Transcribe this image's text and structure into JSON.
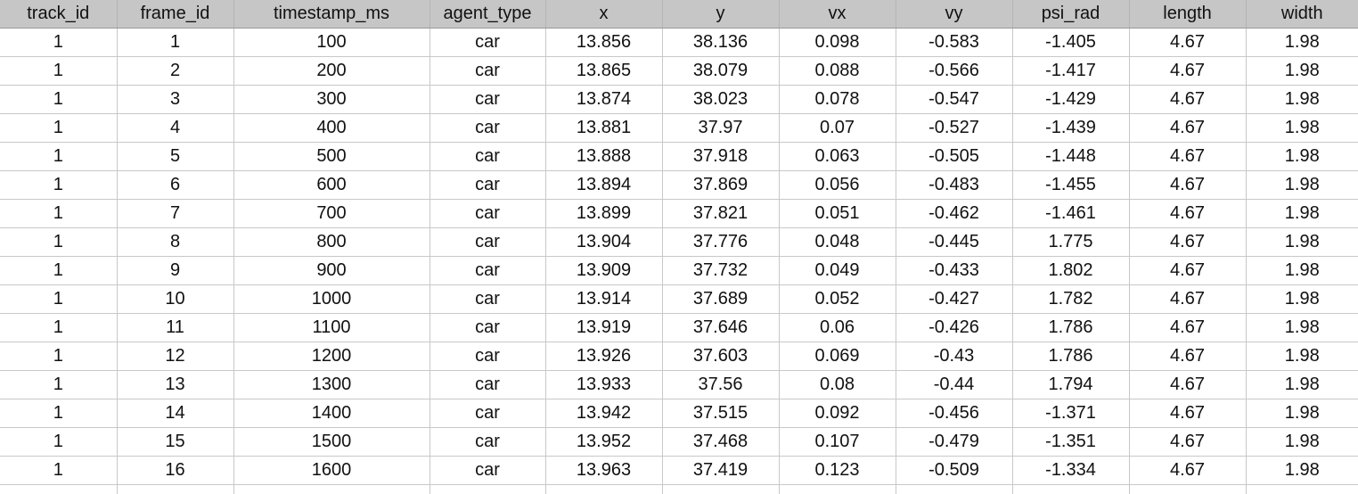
{
  "sheet": {
    "columns": [
      "track_id",
      "frame_id",
      "timestamp_ms",
      "agent_type",
      "x",
      "y",
      "vx",
      "vy",
      "psi_rad",
      "length",
      "width"
    ],
    "rows": [
      [
        "1",
        "1",
        "100",
        "car",
        "13.856",
        "38.136",
        "0.098",
        "-0.583",
        "-1.405",
        "4.67",
        "1.98"
      ],
      [
        "1",
        "2",
        "200",
        "car",
        "13.865",
        "38.079",
        "0.088",
        "-0.566",
        "-1.417",
        "4.67",
        "1.98"
      ],
      [
        "1",
        "3",
        "300",
        "car",
        "13.874",
        "38.023",
        "0.078",
        "-0.547",
        "-1.429",
        "4.67",
        "1.98"
      ],
      [
        "1",
        "4",
        "400",
        "car",
        "13.881",
        "37.97",
        "0.07",
        "-0.527",
        "-1.439",
        "4.67",
        "1.98"
      ],
      [
        "1",
        "5",
        "500",
        "car",
        "13.888",
        "37.918",
        "0.063",
        "-0.505",
        "-1.448",
        "4.67",
        "1.98"
      ],
      [
        "1",
        "6",
        "600",
        "car",
        "13.894",
        "37.869",
        "0.056",
        "-0.483",
        "-1.455",
        "4.67",
        "1.98"
      ],
      [
        "1",
        "7",
        "700",
        "car",
        "13.899",
        "37.821",
        "0.051",
        "-0.462",
        "-1.461",
        "4.67",
        "1.98"
      ],
      [
        "1",
        "8",
        "800",
        "car",
        "13.904",
        "37.776",
        "0.048",
        "-0.445",
        "1.775",
        "4.67",
        "1.98"
      ],
      [
        "1",
        "9",
        "900",
        "car",
        "13.909",
        "37.732",
        "0.049",
        "-0.433",
        "1.802",
        "4.67",
        "1.98"
      ],
      [
        "1",
        "10",
        "1000",
        "car",
        "13.914",
        "37.689",
        "0.052",
        "-0.427",
        "1.782",
        "4.67",
        "1.98"
      ],
      [
        "1",
        "11",
        "1100",
        "car",
        "13.919",
        "37.646",
        "0.06",
        "-0.426",
        "1.786",
        "4.67",
        "1.98"
      ],
      [
        "1",
        "12",
        "1200",
        "car",
        "13.926",
        "37.603",
        "0.069",
        "-0.43",
        "1.786",
        "4.67",
        "1.98"
      ],
      [
        "1",
        "13",
        "1300",
        "car",
        "13.933",
        "37.56",
        "0.08",
        "-0.44",
        "1.794",
        "4.67",
        "1.98"
      ],
      [
        "1",
        "14",
        "1400",
        "car",
        "13.942",
        "37.515",
        "0.092",
        "-0.456",
        "-1.371",
        "4.67",
        "1.98"
      ],
      [
        "1",
        "15",
        "1500",
        "car",
        "13.952",
        "37.468",
        "0.107",
        "-0.479",
        "-1.351",
        "4.67",
        "1.98"
      ],
      [
        "1",
        "16",
        "1600",
        "car",
        "13.963",
        "37.419",
        "0.123",
        "-0.509",
        "-1.334",
        "4.67",
        "1.98"
      ]
    ]
  }
}
